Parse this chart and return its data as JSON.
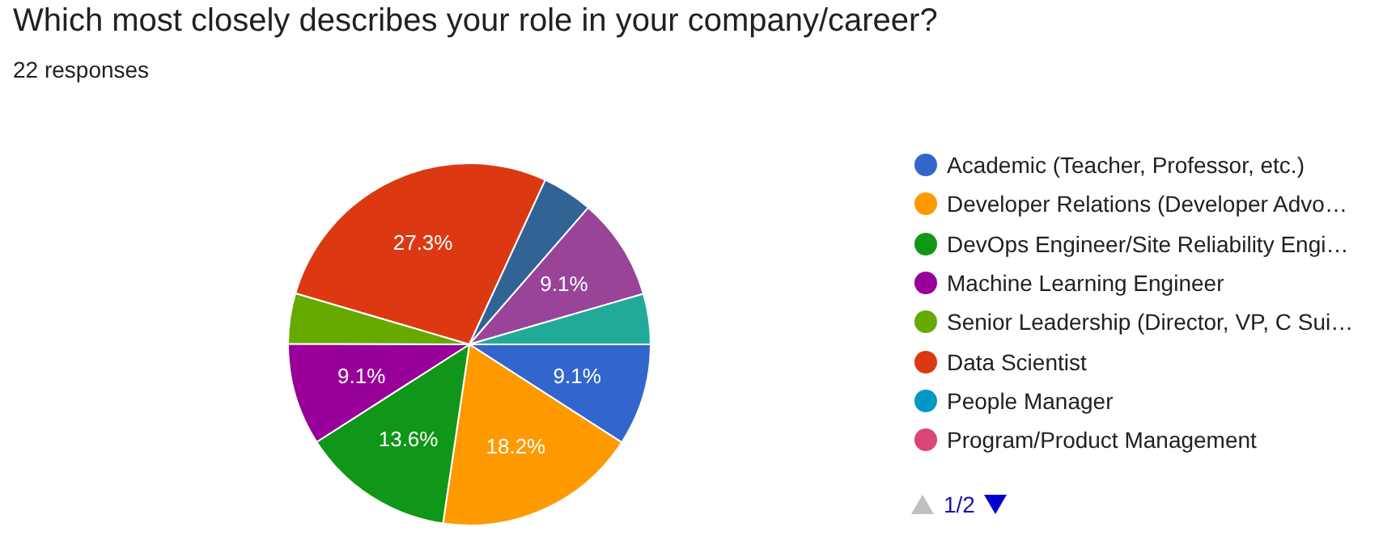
{
  "chart_data": {
    "type": "pie",
    "title": "Which most closely describes your role in your company/career?",
    "subtitle": "22 responses",
    "categories": [
      "Academic (Teacher, Professor, etc.)",
      "Developer Relations (Developer Advo…",
      "DevOps Engineer/Site Reliability Engi…",
      "Machine Learning Engineer",
      "Senior Leadership (Director, VP, C Sui…",
      "Data Scientist",
      null,
      null,
      null,
      "People Manager",
      "Program/Product Management"
    ],
    "values": [
      9.1,
      18.2,
      13.6,
      9.1,
      4.5,
      27.3,
      4.5,
      9.1,
      4.5,
      0,
      0
    ],
    "colors": [
      "#3366cc",
      "#ff9900",
      "#109618",
      "#990099",
      "#66aa00",
      "#dc3912",
      "#316395",
      "#994499",
      "#22aa99",
      "#0099c6",
      "#dd4477"
    ],
    "value_labels": [
      "9.1%",
      "18.2%",
      "13.6%",
      "9.1%",
      null,
      "27.3%",
      null,
      "9.1%",
      null,
      null,
      null
    ],
    "legend": "right",
    "annotations": [
      "1/2"
    ]
  }
}
